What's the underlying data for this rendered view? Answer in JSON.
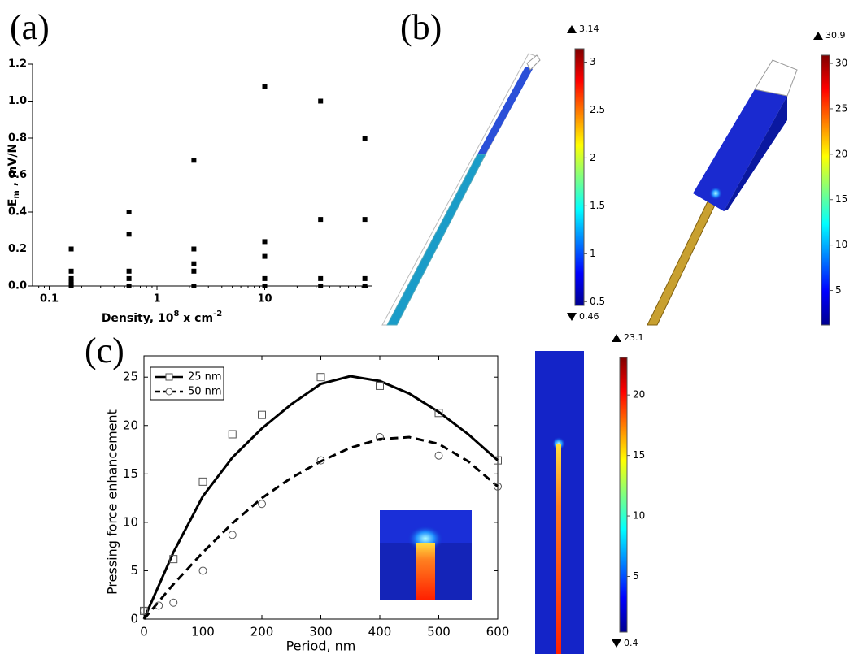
{
  "panel_labels": [
    "(a)",
    "(b)",
    "(c)"
  ],
  "chart_data": [
    {
      "type": "scatter",
      "ylabel": {
        "base": "E",
        "sub": "m",
        "rest": " , mV/N"
      },
      "xlabel": {
        "text": "Density, 10",
        "sup": "8",
        "unit": " x cm",
        "unit_sup": "-2"
      },
      "x_scale": "log",
      "xlim": [
        0.07,
        100
      ],
      "xticks": [
        0.1,
        1,
        10
      ],
      "ylim": [
        0,
        1.2
      ],
      "yticks": [
        {
          "value": 0,
          "label": "0.0"
        },
        0.2,
        0.4,
        0.6,
        0.8,
        {
          "value": 1,
          "label": "1.0"
        },
        1.2
      ],
      "series": [
        {
          "marker": "square",
          "color": "#000000",
          "x": [
            0.16,
            0.16,
            0.16,
            0.16,
            0.16,
            0.16,
            0.55,
            0.55,
            0.55,
            0.55,
            0.55,
            2.2,
            2.2,
            2.2,
            2.2,
            2.2,
            10,
            10,
            10,
            10,
            10,
            33,
            33,
            33,
            33,
            85,
            85,
            85,
            85
          ],
          "values": [
            0.2,
            0.08,
            0.04,
            0.02,
            0.01,
            0,
            0.4,
            0.28,
            0.08,
            0.04,
            0,
            0.68,
            0.2,
            0.12,
            0.08,
            0,
            1.08,
            0.24,
            0.16,
            0.04,
            0,
            1.0,
            0.36,
            0.04,
            0,
            0.8,
            0.36,
            0.04,
            0
          ]
        }
      ]
    },
    {
      "type": "line",
      "xlabel": "Period, nm",
      "ylabel": "Pressing force enhancement",
      "xlim": [
        0,
        600
      ],
      "xticks": [
        0,
        100,
        200,
        300,
        400,
        500,
        600
      ],
      "ylim": [
        0,
        27.2
      ],
      "yticks": [
        0,
        5,
        10,
        15,
        20,
        25
      ],
      "series": [
        {
          "name": "25 nm",
          "marker": "square",
          "dash": "solid",
          "color": "#000000",
          "x": [
            0,
            50,
            100,
            150,
            200,
            300,
            400,
            500,
            600
          ],
          "values": [
            0.85,
            6.2,
            14.2,
            19.1,
            21.1,
            25.0,
            24.1,
            21.3,
            16.4
          ],
          "fit_x": [
            0,
            50,
            100,
            150,
            200,
            250,
            300,
            350,
            400,
            450,
            500,
            550,
            600
          ],
          "fit_values": [
            0,
            6.9,
            12.7,
            16.7,
            19.7,
            22.2,
            24.3,
            25.1,
            24.6,
            23.3,
            21.4,
            19.1,
            16.4
          ]
        },
        {
          "name": "50 nm",
          "marker": "circle",
          "dash": "dashed",
          "color": "#000000",
          "x": [
            0,
            25,
            50,
            100,
            150,
            200,
            300,
            400,
            500,
            600
          ],
          "values": [
            0.85,
            1.4,
            1.7,
            5.0,
            8.7,
            11.9,
            16.4,
            18.8,
            16.9,
            13.7
          ],
          "fit_x": [
            0,
            50,
            100,
            150,
            200,
            250,
            300,
            350,
            400,
            450,
            500,
            550,
            600
          ],
          "fit_values": [
            0,
            3.6,
            6.9,
            9.9,
            12.5,
            14.6,
            16.3,
            17.7,
            18.6,
            18.8,
            18.1,
            16.3,
            13.7
          ]
        }
      ]
    }
  ],
  "colorbars": [
    {
      "lim": [
        0.46,
        3.14
      ],
      "ticks": [
        0.5,
        1,
        1.5,
        2,
        2.5,
        3
      ],
      "show_min": true
    },
    {
      "lim": [
        1.2,
        30.9
      ],
      "ticks": [
        5,
        10,
        15,
        20,
        25,
        30
      ],
      "show_min": false
    },
    {
      "lim": [
        0.4,
        23.1
      ],
      "ticks": [
        5,
        10,
        15,
        20
      ],
      "show_min": true
    }
  ]
}
